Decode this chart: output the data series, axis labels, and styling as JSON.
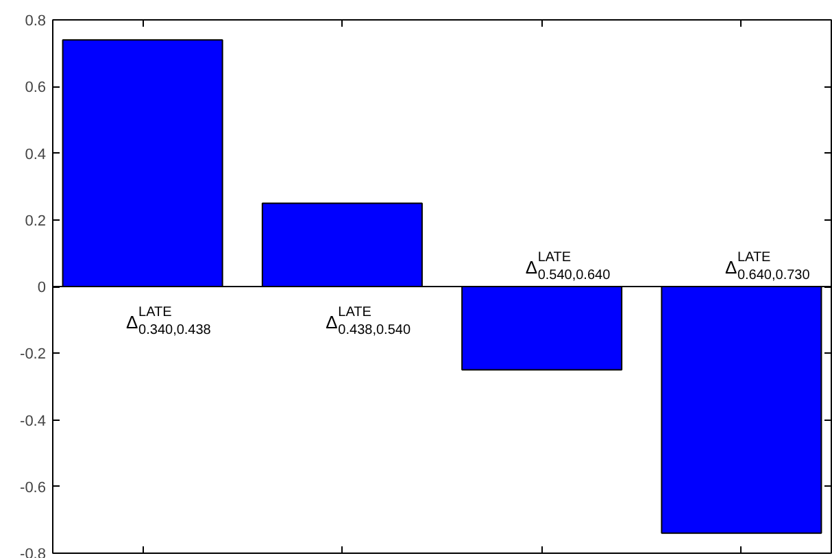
{
  "chart_data": {
    "type": "bar",
    "categories": [
      null,
      null,
      null,
      null
    ],
    "values": [
      0.74,
      0.25,
      -0.25,
      -0.74
    ],
    "color": "#0000ff",
    "ylim": [
      -0.8,
      0.8
    ],
    "yticks": [
      -0.8,
      -0.6,
      -0.4,
      -0.2,
      0,
      0.2,
      0.4,
      0.6,
      0.8
    ],
    "grid": false,
    "tick_labels": "y",
    "ref_lines": [
      {
        "axis": "y",
        "value": 0
      }
    ],
    "annotations": [
      "Δ$^{LATE}$$_{0.340,0.438}$",
      "Δ$^{LATE}$$_{0.438,0.540}$",
      "Δ$^{LATE}$$_{0.540,0.640}$",
      "Δ$^{LATE}$$_{0.640,0.730}$"
    ]
  }
}
